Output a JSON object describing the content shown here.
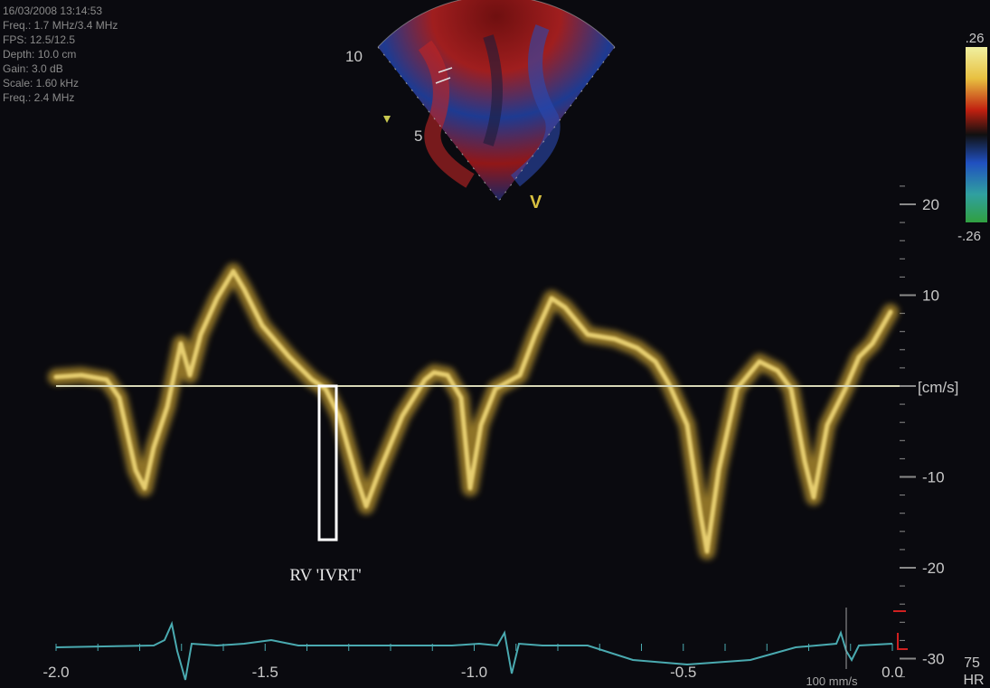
{
  "acquisition": {
    "datetime": "16/03/2008 13:14:53",
    "freq": "Freq.: 1.7 MHz/3.4 MHz",
    "fps": "FPS: 12.5/12.5",
    "depth": "Depth: 10.0 cm",
    "gain": "Gain: 3.0 dB",
    "scale": "Scale: 1.60 kHz",
    "doppler_freq": "Freq.: 2.4 MHz"
  },
  "sector": {
    "depth_labels": [
      "10",
      "5"
    ],
    "marker": "V"
  },
  "color_bar": {
    "max_label": ".26",
    "min_label": "-.26",
    "colors": [
      "#f0f0a0",
      "#e8c040",
      "#c02010",
      "#101010",
      "#2050c0",
      "#30a040"
    ]
  },
  "velocity_axis": {
    "unit": "[cm/s]",
    "ticks": [
      {
        "value": 20,
        "label": "20"
      },
      {
        "value": 10,
        "label": "10"
      },
      {
        "value": -10,
        "label": "-10"
      },
      {
        "value": -20,
        "label": "-20"
      },
      {
        "value": -30,
        "label": "-30"
      }
    ]
  },
  "time_axis": {
    "ticks": [
      {
        "value": -2.0,
        "label": "-2.0"
      },
      {
        "value": -1.5,
        "label": "-1.5"
      },
      {
        "value": -1.0,
        "label": "-1.0"
      },
      {
        "value": -0.5,
        "label": "-0.5"
      },
      {
        "value": 0.0,
        "label": "0.0"
      }
    ],
    "sweep": "100 mm/s"
  },
  "heart_rate": {
    "value": "75",
    "unit": "HR"
  },
  "annotation": {
    "label": "RV 'IVRT'"
  },
  "trace_color": "#e8c85a",
  "ecg_color": "#4aaab0"
}
